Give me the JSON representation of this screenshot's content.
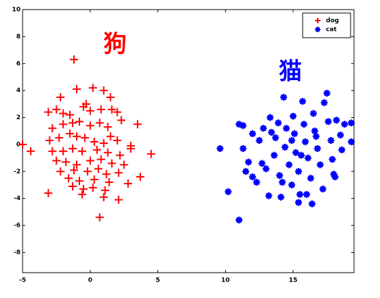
{
  "chart_data": {
    "type": "scatter",
    "annotations": [
      {
        "text": "狗",
        "color": "#ff0000"
      },
      {
        "text": "猫",
        "color": "#0000ff"
      }
    ],
    "xlim": [
      -5,
      19.5
    ],
    "ylim": [
      -9.5,
      10
    ],
    "xticks": [
      -5,
      0,
      5,
      10,
      15
    ],
    "yticks": [
      -8,
      -6,
      -4,
      -2,
      0,
      2,
      4,
      6,
      8,
      10
    ],
    "grid": false,
    "legend": "top-right",
    "series": [
      {
        "name": "dog",
        "color": "#ff0000",
        "marker": "+",
        "x": [
          -5,
          -4.4,
          -1.2,
          0.2,
          -1,
          1,
          1.5,
          -2.2,
          -0.3,
          -3.1,
          -2.5,
          -2,
          -1.5,
          -0.5,
          0,
          0.8,
          1.6,
          2,
          -2.8,
          -2,
          -1.3,
          -0.8,
          0,
          0.7,
          1.3,
          2.3,
          3.5,
          -3,
          -2.3,
          -1.5,
          -1,
          -0.4,
          0.3,
          1,
          1.5,
          2,
          3,
          -2.8,
          -2,
          -1.3,
          -0.6,
          0.5,
          1.3,
          2.2,
          3,
          4.5,
          -2.5,
          -1.8,
          -1,
          0,
          0.8,
          1.6,
          2.5,
          -2.2,
          -1.2,
          -0.2,
          0.6,
          1.2,
          2.1,
          3.7,
          -1.6,
          -0.8,
          0.3,
          1.4,
          2.8,
          -3.1,
          -1.3,
          -0.5,
          0.2,
          1.1,
          -0.6,
          1,
          2.1,
          0.7
        ],
        "y": [
          0,
          -0.5,
          6.3,
          4.2,
          4.1,
          4,
          3.5,
          3.5,
          3,
          2.4,
          2.6,
          2.3,
          2.2,
          2.8,
          2.5,
          2.6,
          2.6,
          2.4,
          1.2,
          1.5,
          1.6,
          1.7,
          1.4,
          1.6,
          1.3,
          1.8,
          1.5,
          0.3,
          0.5,
          0.8,
          0.6,
          0.5,
          0.2,
          0.1,
          0.6,
          0.3,
          -0.1,
          -0.5,
          -0.5,
          -0.3,
          -0.5,
          -0.4,
          -0.6,
          -0.8,
          -0.3,
          -0.7,
          -1.2,
          -1.3,
          -1.5,
          -1.2,
          -1.1,
          -1.4,
          -1.5,
          -2,
          -1.9,
          -2,
          -1.8,
          -2.2,
          -2.1,
          -2.4,
          -2.5,
          -2.7,
          -2.6,
          -2.8,
          -2.9,
          -3.6,
          -3.1,
          -3.3,
          -3.2,
          -3.4,
          -3.7,
          -3.9,
          -4.1,
          -5.4
        ]
      },
      {
        "name": "cat",
        "color": "#0000ff",
        "marker": "*",
        "x": [
          9.6,
          10.2,
          11,
          11,
          11.3,
          11.3,
          11.5,
          11.7,
          12,
          12.3,
          12.5,
          12.8,
          13,
          13.2,
          13.3,
          13.6,
          13.7,
          13.9,
          14,
          14.1,
          14.3,
          14.5,
          14.4,
          14.7,
          14.9,
          15,
          15.1,
          15.2,
          15.4,
          15.5,
          15.7,
          15.8,
          15.9,
          16.1,
          16.3,
          16.4,
          16.5,
          16.6,
          16.8,
          17,
          17.2,
          17.3,
          17.5,
          17.6,
          17.8,
          17.9,
          18,
          16,
          15.4,
          18.2,
          18.5,
          18.6,
          18.8,
          18.1,
          19.3,
          19.3,
          14.2,
          12.7,
          13.4,
          12,
          16.7,
          15.6,
          14.9
        ],
        "y": [
          -0.3,
          -3.5,
          -5.6,
          1.5,
          1.4,
          -0.3,
          -2,
          -1.3,
          -2.4,
          -2.8,
          0.3,
          1.2,
          -1.8,
          -3.8,
          2,
          -0.8,
          0.5,
          1.6,
          -2.3,
          -3.9,
          3.5,
          1.2,
          -0.2,
          -1.5,
          -3,
          2.1,
          0.8,
          -0.6,
          -2,
          -3.7,
          3.2,
          1.5,
          0.2,
          -1,
          -2.5,
          -4.4,
          2.3,
          1,
          -0.3,
          -1.5,
          -3.3,
          3.1,
          3.8,
          1.7,
          0.3,
          -1.1,
          -2.2,
          -3.7,
          -4.3,
          1.8,
          0.7,
          -0.4,
          1.5,
          -2.4,
          1.6,
          0.2,
          -2.8,
          -1.4,
          0.9,
          0.8,
          0.6,
          -0.8,
          0.3
        ]
      }
    ]
  }
}
